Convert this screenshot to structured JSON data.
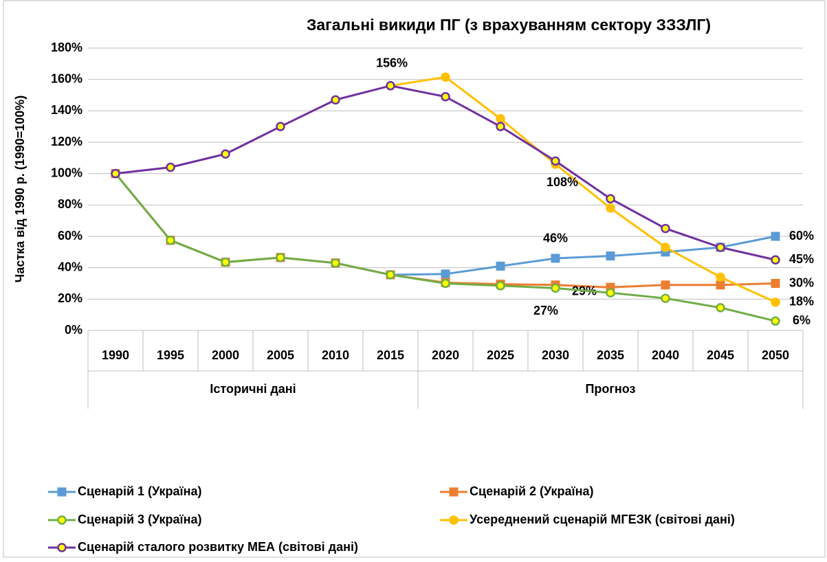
{
  "chart_data": {
    "type": "line",
    "title": "Загальні викиди ПГ (з врахуванням сектору ЗЗЗЛГ)",
    "y_label": "Частка від 1990 р. (1990=100%)",
    "categories": [
      "1990",
      "1995",
      "2000",
      "2005",
      "2010",
      "2015",
      "2020",
      "2025",
      "2030",
      "2035",
      "2040",
      "2045",
      "2050"
    ],
    "x_groups": [
      {
        "name": "Історичні дані",
        "from": "1990",
        "to": "2015"
      },
      {
        "name": "Прогноз",
        "from": "2020",
        "to": "2050"
      }
    ],
    "ylim": [
      0,
      180
    ],
    "yticks": [
      {
        "value": 0,
        "label": "0%"
      },
      {
        "value": 20,
        "label": "20%"
      },
      {
        "value": 40,
        "label": "40%"
      },
      {
        "value": 60,
        "label": "60%"
      },
      {
        "value": 80,
        "label": "80%"
      },
      {
        "value": 100,
        "label": "100%"
      },
      {
        "value": 120,
        "label": "120%"
      },
      {
        "value": 140,
        "label": "140%"
      },
      {
        "value": 160,
        "label": "160%"
      },
      {
        "value": 180,
        "label": "180%"
      }
    ],
    "grid": true,
    "legend": "bottom",
    "series": [
      {
        "name": "Сценарій 1 (Україна)",
        "color": "#5b9bd5",
        "marker": "square",
        "marker_fill": "#5b9bd5",
        "values": [
          100,
          57.5,
          43.5,
          46.5,
          43,
          35.5,
          36,
          41,
          46,
          47.5,
          50,
          53,
          60
        ],
        "value_labels": [
          null,
          null,
          null,
          null,
          null,
          null,
          null,
          null,
          "46%",
          null,
          null,
          null,
          "60%"
        ]
      },
      {
        "name": "Сценарій 2 (Україна)",
        "color": "#ed7d31",
        "marker": "square",
        "marker_fill": "#ed7d31",
        "values": [
          100,
          57.5,
          43.5,
          46.5,
          43,
          35.5,
          30.5,
          29.5,
          29,
          27.5,
          29,
          29,
          30
        ],
        "value_labels": [
          null,
          null,
          null,
          null,
          null,
          null,
          null,
          null,
          "29%",
          null,
          null,
          null,
          "30%"
        ]
      },
      {
        "name": "Сценарій 3 (Україна)",
        "color": "#70ad47",
        "marker": "circle",
        "marker_fill": "#ffff00",
        "values": [
          100,
          57.5,
          43.5,
          46.5,
          43,
          35.5,
          30,
          28.5,
          27,
          24,
          20.5,
          14.5,
          6
        ],
        "value_labels": [
          null,
          null,
          null,
          null,
          null,
          null,
          null,
          null,
          "27%",
          null,
          null,
          null,
          "6%"
        ]
      },
      {
        "name": "Усереднений сценарій МГЕЗК (світові дані)",
        "color": "#ffc000",
        "marker": "circle",
        "marker_fill": "#ffc000",
        "values": [
          null,
          null,
          null,
          null,
          null,
          156,
          161.5,
          135,
          106,
          78,
          53,
          34,
          18
        ],
        "value_labels": [
          null,
          null,
          null,
          null,
          null,
          null,
          null,
          null,
          null,
          null,
          null,
          null,
          "18%"
        ]
      },
      {
        "name": "Сценарій сталого розвитку МЕА (світові дані)",
        "color": "#7030a0",
        "marker": "circle",
        "marker_fill": "#ffff00",
        "values": [
          100,
          104,
          112.5,
          130,
          147,
          156,
          149,
          130,
          108,
          84,
          65,
          53,
          45
        ],
        "value_labels": [
          null,
          null,
          null,
          null,
          null,
          "156%",
          null,
          null,
          "108%",
          null,
          null,
          null,
          "45%"
        ]
      }
    ]
  }
}
